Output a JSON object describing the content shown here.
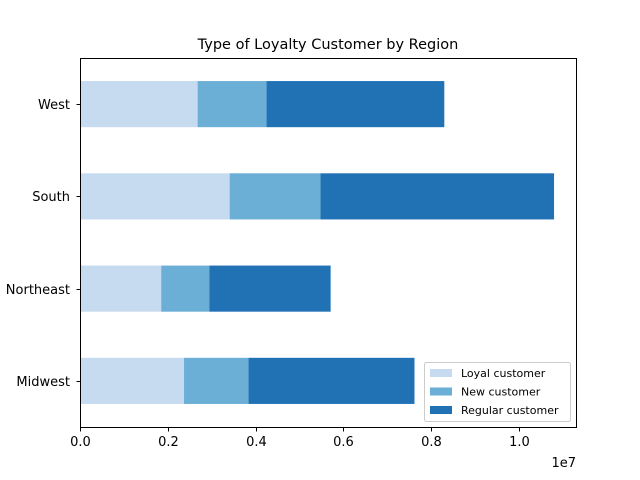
{
  "chart_data": {
    "type": "bar",
    "orientation": "horizontal",
    "stacked": true,
    "title": "Type of Loyalty Customer by Region",
    "xlabel": "",
    "ylabel": "",
    "x_offset_label": "1e7",
    "x_tick_labels": [
      "0.0",
      "0.2",
      "0.4",
      "0.6",
      "0.8",
      "1.0"
    ],
    "x_ticks": [
      0,
      2000000,
      4000000,
      6000000,
      8000000,
      10000000
    ],
    "xlim": [
      0,
      11300000
    ],
    "grid": false,
    "legend_position": "lower-right",
    "categories": [
      "Midwest",
      "Northeast",
      "South",
      "West"
    ],
    "series": [
      {
        "name": "Loyal customer",
        "color": "#c6dbef",
        "values": [
          2370000,
          1850000,
          3410000,
          2680000
        ]
      },
      {
        "name": "New customer",
        "color": "#6baed6",
        "values": [
          1470000,
          1100000,
          2070000,
          1570000
        ]
      },
      {
        "name": "Regular customer",
        "color": "#2171b5",
        "values": [
          3780000,
          2760000,
          5320000,
          4050000
        ]
      }
    ]
  }
}
